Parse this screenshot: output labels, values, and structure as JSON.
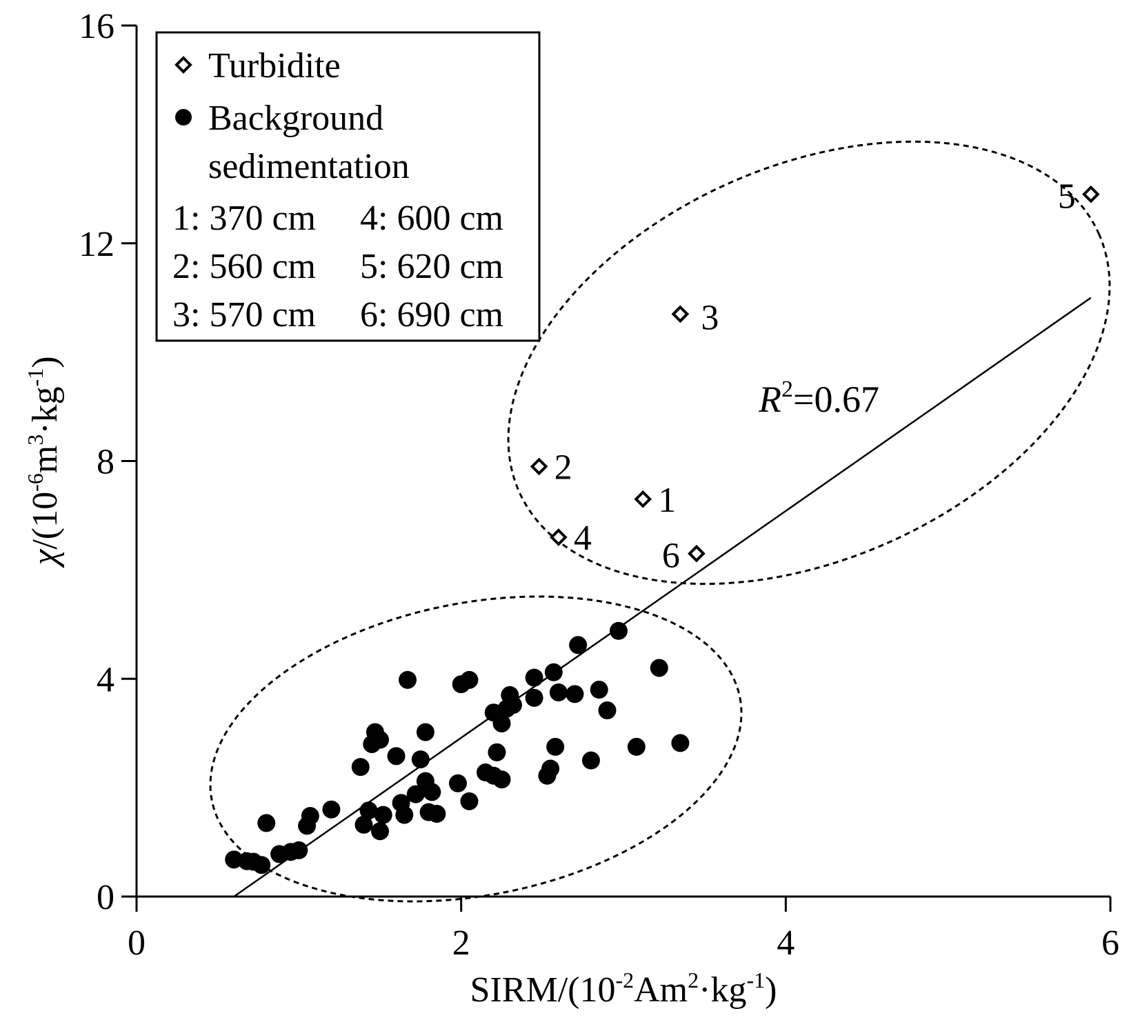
{
  "chart_data": {
    "type": "scatter",
    "xlabel": {
      "base": "SIRM/(10",
      "exp1": "-2",
      "mid": "Am",
      "exp2": "2",
      "tail": "·kg",
      "exp3": "-1",
      "close": ")"
    },
    "ylabel": {
      "chi": "χ",
      "base": "/(10",
      "exp1": "-6",
      "mid": "m",
      "exp2": "3",
      "tail": "·kg",
      "exp3": "-1",
      "close": ")"
    },
    "xlim": [
      0,
      6
    ],
    "ylim": [
      0,
      16
    ],
    "x_ticks": [
      "0",
      "2",
      "4",
      "6"
    ],
    "y_ticks": [
      "0",
      "4",
      "8",
      "12",
      "16"
    ],
    "legend": {
      "turbidite": "Turbidite",
      "background_line1": "Background",
      "background_line2": "sedimentation",
      "depths": [
        "1: 370 cm",
        "4: 600 cm",
        "2: 560 cm",
        "5: 620 cm",
        "3: 570 cm",
        "6: 690 cm"
      ]
    },
    "annotation": {
      "r": "R",
      "sup": "2",
      "value": "=0.67"
    },
    "regression": {
      "x": [
        0.6,
        5.88
      ],
      "y": [
        0.0,
        11.0
      ]
    },
    "series": [
      {
        "name": "Turbidite",
        "marker": "open-diamond",
        "points": [
          {
            "label": "1",
            "x": 3.12,
            "y": 7.3
          },
          {
            "label": "2",
            "x": 2.48,
            "y": 7.9
          },
          {
            "label": "3",
            "x": 3.35,
            "y": 10.7
          },
          {
            "label": "4",
            "x": 2.6,
            "y": 6.6
          },
          {
            "label": "5",
            "x": 5.88,
            "y": 12.9
          },
          {
            "label": "6",
            "x": 3.45,
            "y": 6.3
          }
        ]
      },
      {
        "name": "Background sedimentation",
        "marker": "filled-circle",
        "points": [
          {
            "x": 0.6,
            "y": 0.68
          },
          {
            "x": 0.68,
            "y": 0.65
          },
          {
            "x": 0.72,
            "y": 0.64
          },
          {
            "x": 0.77,
            "y": 0.58
          },
          {
            "x": 0.8,
            "y": 1.35
          },
          {
            "x": 0.88,
            "y": 0.78
          },
          {
            "x": 0.95,
            "y": 0.82
          },
          {
            "x": 1.0,
            "y": 0.85
          },
          {
            "x": 1.05,
            "y": 1.3
          },
          {
            "x": 1.07,
            "y": 1.48
          },
          {
            "x": 1.2,
            "y": 1.6
          },
          {
            "x": 1.38,
            "y": 2.38
          },
          {
            "x": 1.4,
            "y": 1.32
          },
          {
            "x": 1.43,
            "y": 1.58
          },
          {
            "x": 1.45,
            "y": 2.8
          },
          {
            "x": 1.47,
            "y": 3.02
          },
          {
            "x": 1.5,
            "y": 2.88
          },
          {
            "x": 1.5,
            "y": 1.2
          },
          {
            "x": 1.52,
            "y": 1.5
          },
          {
            "x": 1.6,
            "y": 2.58
          },
          {
            "x": 1.63,
            "y": 1.72
          },
          {
            "x": 1.65,
            "y": 1.5
          },
          {
            "x": 1.67,
            "y": 3.98
          },
          {
            "x": 1.72,
            "y": 1.88
          },
          {
            "x": 1.75,
            "y": 2.52
          },
          {
            "x": 1.78,
            "y": 2.12
          },
          {
            "x": 1.78,
            "y": 3.02
          },
          {
            "x": 1.8,
            "y": 1.55
          },
          {
            "x": 1.82,
            "y": 1.92
          },
          {
            "x": 1.85,
            "y": 1.52
          },
          {
            "x": 1.98,
            "y": 2.08
          },
          {
            "x": 2.0,
            "y": 3.9
          },
          {
            "x": 2.05,
            "y": 1.75
          },
          {
            "x": 2.05,
            "y": 3.98
          },
          {
            "x": 2.15,
            "y": 2.28
          },
          {
            "x": 2.2,
            "y": 2.22
          },
          {
            "x": 2.2,
            "y": 3.38
          },
          {
            "x": 2.22,
            "y": 2.65
          },
          {
            "x": 2.25,
            "y": 2.15
          },
          {
            "x": 2.25,
            "y": 3.18
          },
          {
            "x": 2.28,
            "y": 3.45
          },
          {
            "x": 2.3,
            "y": 3.7
          },
          {
            "x": 2.32,
            "y": 3.52
          },
          {
            "x": 2.45,
            "y": 4.02
          },
          {
            "x": 2.45,
            "y": 3.65
          },
          {
            "x": 2.53,
            "y": 2.22
          },
          {
            "x": 2.55,
            "y": 2.35
          },
          {
            "x": 2.57,
            "y": 4.12
          },
          {
            "x": 2.58,
            "y": 2.75
          },
          {
            "x": 2.6,
            "y": 3.75
          },
          {
            "x": 2.7,
            "y": 3.72
          },
          {
            "x": 2.72,
            "y": 4.62
          },
          {
            "x": 2.8,
            "y": 2.5
          },
          {
            "x": 2.85,
            "y": 3.8
          },
          {
            "x": 2.9,
            "y": 3.42
          },
          {
            "x": 2.97,
            "y": 4.88
          },
          {
            "x": 3.08,
            "y": 2.75
          },
          {
            "x": 3.22,
            "y": 4.2
          },
          {
            "x": 3.35,
            "y": 2.82
          }
        ]
      }
    ],
    "grid": false,
    "legend_placement": "top-left"
  }
}
